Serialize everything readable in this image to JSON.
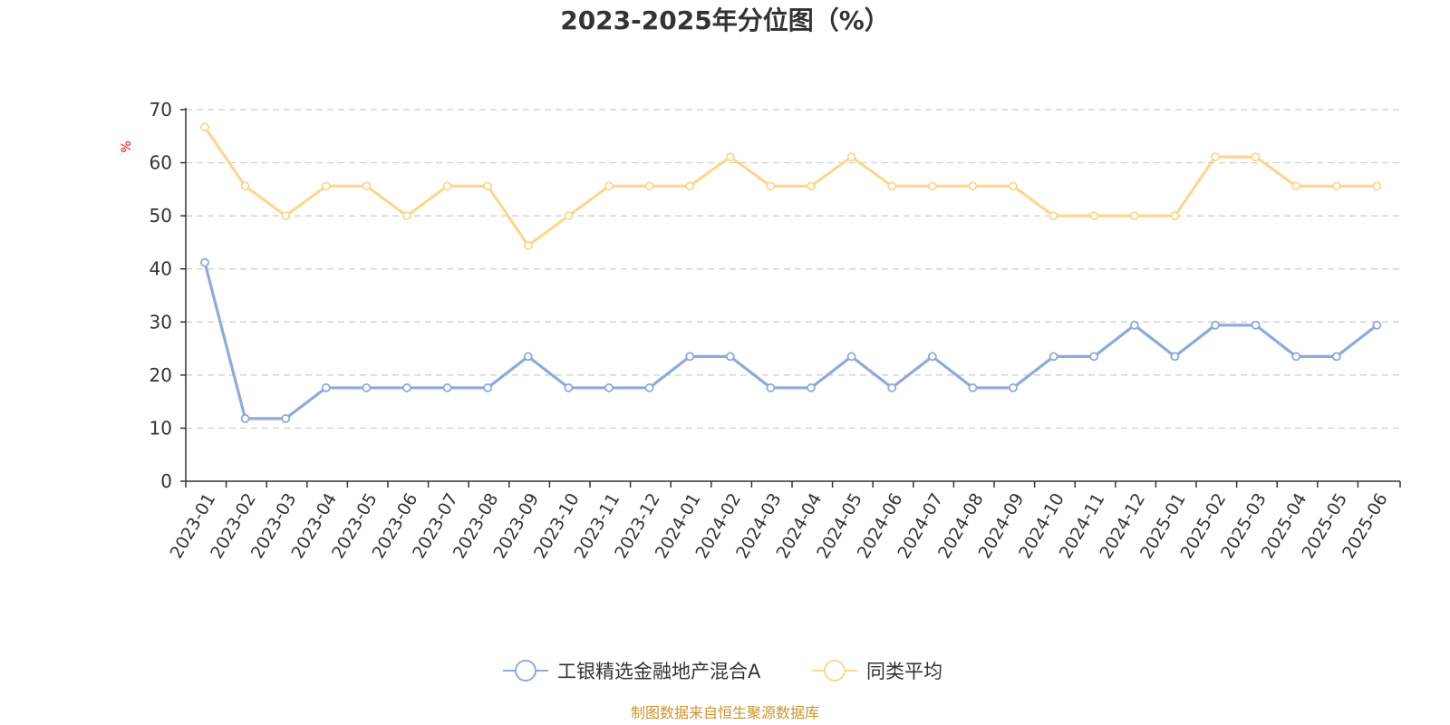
{
  "chart_data": {
    "type": "line",
    "title": "2023-2025年分位图（%）",
    "ylabel": "%",
    "ylim": [
      0,
      70
    ],
    "yticks": [
      0,
      10,
      20,
      30,
      40,
      50,
      60,
      70
    ],
    "grid": true,
    "legend_position": "bottom-center",
    "categories": [
      "2023-01",
      "2023-02",
      "2023-03",
      "2023-04",
      "2023-05",
      "2023-06",
      "2023-07",
      "2023-08",
      "2023-09",
      "2023-10",
      "2023-11",
      "2023-12",
      "2024-01",
      "2024-02",
      "2024-03",
      "2024-04",
      "2024-05",
      "2024-06",
      "2024-07",
      "2024-08",
      "2024-09",
      "2024-10",
      "2024-11",
      "2024-12",
      "2025-01",
      "2025-02",
      "2025-03",
      "2025-04",
      "2025-05",
      "2025-06"
    ],
    "series": [
      {
        "name": "工银精选金融地产混合A",
        "color": "#8eaadb",
        "values": [
          41.2,
          11.8,
          11.8,
          17.6,
          17.6,
          17.6,
          17.6,
          17.6,
          23.5,
          17.6,
          17.6,
          17.6,
          23.5,
          23.5,
          17.6,
          17.6,
          23.5,
          17.6,
          23.5,
          17.6,
          17.6,
          23.5,
          23.5,
          29.4,
          23.5,
          29.4,
          29.4,
          23.5,
          23.5,
          29.4
        ]
      },
      {
        "name": "同类平均",
        "color": "#fbd78f",
        "values": [
          66.7,
          55.6,
          50.0,
          55.6,
          55.6,
          50.0,
          55.6,
          55.6,
          44.4,
          50.0,
          55.6,
          55.6,
          55.6,
          61.1,
          55.6,
          55.6,
          61.1,
          55.6,
          55.6,
          55.6,
          55.6,
          50.0,
          50.0,
          50.0,
          50.0,
          61.1,
          61.1,
          55.6,
          55.6,
          55.6
        ]
      }
    ]
  },
  "colors": {
    "axis": "#333333",
    "grid": "#cccccc",
    "unit_label": "#ff0000",
    "source": "#c9962c"
  },
  "source_text": "制图数据来自恒生聚源数据库"
}
